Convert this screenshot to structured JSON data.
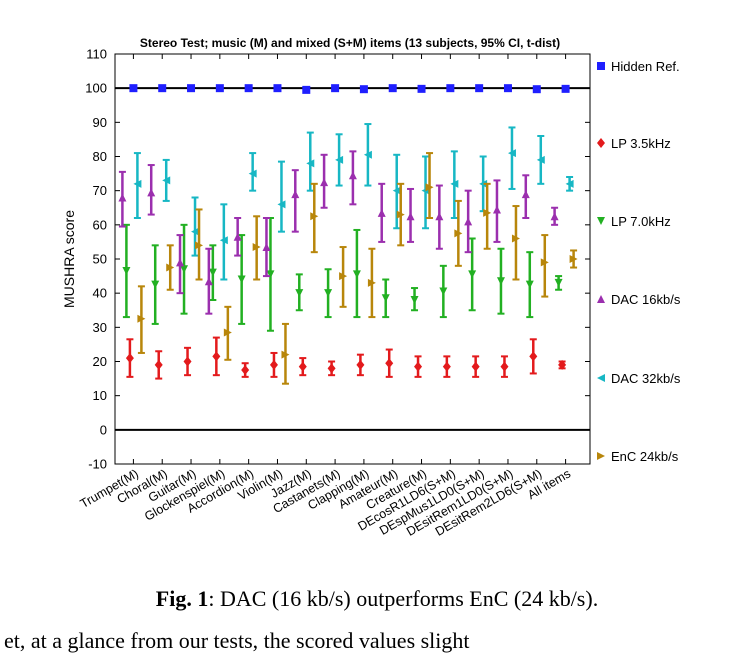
{
  "chart_data": {
    "type": "scatter",
    "title": "Stereo Test; music (M) and mixed (S+M) items (13 subjects, 95% CI, t-dist)",
    "ylabel": "MUSHRA score",
    "xlabel": "",
    "ylim": [
      -10,
      110
    ],
    "yticks": [
      -10,
      0,
      10,
      20,
      30,
      40,
      50,
      60,
      70,
      80,
      90,
      100,
      110
    ],
    "reference_lines": [
      0,
      100
    ],
    "grid": false,
    "legend_position": "right",
    "categories": [
      "Trumpet(M)",
      "Choral(M)",
      "Guitar(M)",
      "Glockenspiel(M)",
      "Accordion(M)",
      "Violin(M)",
      "Jazz(M)",
      "Castanets(M)",
      "Clapping(M)",
      "Amateur(M)",
      "Creature(M)",
      "DEcosR1LD6(S+M)",
      "DEspMus1LD0(S+M)",
      "DEsitRem1LD0(S+M)",
      "DEsitRem2LD6(S+M)",
      "All items"
    ],
    "series": [
      {
        "name": "Hidden Ref.",
        "color": "#1f1fff",
        "marker": "square",
        "values": [
          100,
          100,
          100,
          100,
          100,
          100,
          99.5,
          100,
          99.7,
          100,
          99.8,
          100,
          100,
          100,
          99.7,
          99.8
        ],
        "lower": [
          100,
          100,
          100,
          100,
          100,
          100,
          99,
          100,
          99.4,
          100,
          99.6,
          100,
          100,
          100,
          99.4,
          99.6
        ],
        "upper": [
          100,
          100,
          100,
          100,
          100,
          100,
          100,
          100,
          100,
          100,
          100,
          100,
          100,
          100,
          100,
          100
        ]
      },
      {
        "name": "LP 3.5kHz",
        "color": "#e31a1c",
        "marker": "diamond",
        "values": [
          21,
          19,
          20,
          21.5,
          17.5,
          19,
          18.5,
          18,
          19,
          19.5,
          18.5,
          18.5,
          18.5,
          18.5,
          21.5,
          19
        ],
        "lower": [
          15.5,
          15,
          16,
          16,
          15.5,
          15.5,
          16,
          16,
          16,
          15.5,
          15.5,
          15.5,
          15.5,
          15.5,
          16.5,
          18
        ],
        "upper": [
          26.5,
          23,
          24,
          27,
          19.5,
          22.5,
          21,
          20,
          22,
          23.5,
          21.5,
          21.5,
          21.5,
          21.5,
          26.5,
          20
        ]
      },
      {
        "name": "LP 7.0kHz",
        "color": "#22b022",
        "marker": "triangle-down",
        "values": [
          46.5,
          42.5,
          47,
          46,
          44,
          45.5,
          40,
          40,
          45.5,
          38.5,
          38,
          40.5,
          45.5,
          43.5,
          42.5,
          43
        ],
        "lower": [
          33,
          31,
          34,
          38,
          31,
          29,
          35,
          33,
          33,
          33,
          35,
          33,
          35,
          34,
          33,
          41
        ],
        "upper": [
          60,
          54,
          60,
          54,
          57,
          62,
          45.5,
          47,
          58.5,
          44,
          41.5,
          48,
          56,
          53,
          52,
          45
        ]
      },
      {
        "name": "DAC 16kb/s",
        "color": "#9b2fae",
        "marker": "triangle-up",
        "values": [
          68,
          69.5,
          49,
          43.5,
          56.5,
          53.5,
          69,
          72.5,
          74.5,
          63.5,
          62.5,
          62.5,
          61,
          64.5,
          69,
          62.5
        ],
        "lower": [
          59.5,
          63,
          40,
          34,
          51,
          45,
          58,
          65,
          66,
          55,
          55,
          53,
          52,
          55,
          62,
          60
        ],
        "upper": [
          75.5,
          77.5,
          57,
          53,
          62,
          62,
          76,
          80.5,
          81.5,
          72,
          70.5,
          71.5,
          70,
          73,
          74.5,
          65
        ]
      },
      {
        "name": "DAC 32kb/s",
        "color": "#17b7c4",
        "marker": "triangle-left",
        "values": [
          72,
          73,
          58,
          55.5,
          75,
          66,
          78,
          79,
          80.5,
          70,
          70,
          72,
          72,
          81,
          79,
          72
        ],
        "lower": [
          62,
          67,
          51,
          44,
          70,
          58,
          70,
          71.5,
          71.5,
          59,
          59,
          62,
          64,
          70.5,
          72,
          70
        ],
        "upper": [
          81,
          79,
          68,
          66,
          81,
          78.5,
          87,
          86.5,
          89.5,
          80.5,
          80,
          81.5,
          80,
          88.5,
          86,
          74
        ]
      },
      {
        "name": "EnC 24kb/s",
        "color": "#b8860b",
        "marker": "triangle-right",
        "values": [
          32.5,
          47.5,
          54,
          28.5,
          53.5,
          22,
          62.5,
          45,
          43,
          63,
          71,
          57.5,
          63.5,
          56,
          49,
          50
        ],
        "lower": [
          22.5,
          41,
          44,
          20.5,
          44,
          13.5,
          52,
          36,
          33,
          54,
          62,
          48,
          53,
          44,
          39,
          47.5
        ],
        "upper": [
          42,
          54,
          64.5,
          36,
          62.5,
          31,
          72,
          53.5,
          53,
          72,
          81,
          67,
          72,
          65.5,
          57,
          52.5
        ]
      }
    ]
  },
  "caption": {
    "label": "Fig. 1",
    "text": ": DAC (16 kb/s) outperforms EnC (24 kb/s)."
  },
  "cutoff_text": "et, at a glance from our tests, the scored values slight"
}
